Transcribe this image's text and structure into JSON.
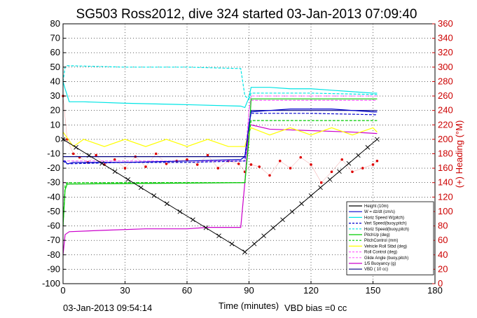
{
  "chart_data": {
    "type": "line",
    "title": "SG503 Ross2012, dive 324 started 03-Jan-2013 07:09:40",
    "xlabel": "Time (minutes)",
    "ylabel_right": "(+) Heading (°M)",
    "footer_left": "03-Jan-2013 09:54:14",
    "footer_right": "VBD bias =0 cc",
    "xlim": [
      0,
      180
    ],
    "ylim": [
      -100,
      80
    ],
    "y2lim": [
      0,
      360
    ],
    "x_ticks": [
      0,
      30,
      60,
      90,
      120,
      150,
      180
    ],
    "y_ticks": [
      -100,
      -90,
      -80,
      -70,
      -60,
      -50,
      -40,
      -30,
      -20,
      -10,
      0,
      10,
      20,
      30,
      40,
      50,
      60,
      70,
      80
    ],
    "y2_ticks": [
      0,
      20,
      40,
      60,
      80,
      100,
      120,
      140,
      160,
      180,
      200,
      220,
      240,
      260,
      280,
      300,
      320,
      340,
      360
    ],
    "grid": true,
    "legend_position": "bottom-right",
    "series": [
      {
        "name": "Height (10m)",
        "color": "#000000",
        "style": "solid",
        "x": [
          0,
          88,
          152
        ],
        "y": [
          0,
          -78,
          0
        ]
      },
      {
        "name": "W = dz/dt (cm/s)",
        "color": "#0000cc",
        "style": "solid",
        "x": [
          0,
          1,
          2,
          5,
          30,
          60,
          86,
          88,
          90,
          91,
          100,
          110,
          120,
          130,
          140,
          150,
          152
        ],
        "y": [
          -15,
          -15,
          -17,
          -16,
          -16,
          -15,
          -14,
          -12,
          10,
          19,
          20,
          21,
          21,
          21,
          20,
          19,
          19
        ]
      },
      {
        "name": "Horiz Speed W(pitch)",
        "color": "#00e5e5",
        "style": "solid",
        "x": [
          0,
          1,
          3,
          10,
          30,
          60,
          86,
          88,
          90,
          91,
          100,
          110,
          120,
          130,
          140,
          150,
          152
        ],
        "y": [
          40,
          35,
          26,
          26,
          25,
          24,
          23,
          22,
          29,
          36,
          36,
          35,
          35,
          34,
          33,
          32,
          32
        ]
      },
      {
        "name": "Vert Speed(buoy,pitch)",
        "color": "#0000cc",
        "style": "dashed",
        "x": [
          0,
          1,
          2,
          30,
          60,
          88,
          90,
          91,
          120,
          152
        ],
        "y": [
          -15,
          -16,
          -17,
          -16,
          -16,
          -15,
          10,
          18,
          18,
          17
        ]
      },
      {
        "name": "Horiz Speed(buoy,pitch)",
        "color": "#00e5e5",
        "style": "dashed",
        "x": [
          0,
          1,
          2,
          30,
          60,
          86,
          88,
          90,
          91,
          120,
          152
        ],
        "y": [
          40,
          50,
          51,
          50,
          50,
          49,
          30,
          28,
          32,
          32,
          31
        ]
      },
      {
        "name": "PitchUp (deg)",
        "color": "#00cc00",
        "style": "solid",
        "x": [
          0,
          1,
          2,
          88,
          90,
          91,
          120,
          152
        ],
        "y": [
          -60,
          -35,
          -31,
          -30,
          0,
          28,
          28,
          28
        ]
      },
      {
        "name": "PitchControl (mm)",
        "color": "#00cc00",
        "style": "dashed",
        "x": [
          0,
          1,
          2,
          88,
          90,
          91,
          120,
          152
        ],
        "y": [
          -60,
          -32,
          -30,
          -30,
          2,
          13,
          13,
          13
        ]
      },
      {
        "name": "Vehicle Roll Stbd (deg)",
        "color": "#ffff00",
        "style": "solid",
        "x": [
          0,
          5,
          10,
          20,
          30,
          40,
          50,
          60,
          70,
          80,
          88,
          90,
          91,
          100,
          110,
          120,
          130,
          140,
          150,
          152
        ],
        "y": [
          5,
          -5,
          0,
          -5,
          0,
          -5,
          0,
          -5,
          0,
          -5,
          -5,
          5,
          8,
          3,
          8,
          3,
          8,
          3,
          8,
          5
        ]
      },
      {
        "name": "Roll Control (deg)",
        "color": "#ff66ff",
        "style": "dashed",
        "x": [
          0,
          88,
          90,
          91,
          120,
          152
        ],
        "y": [
          -15,
          -15,
          20,
          30,
          30,
          30
        ]
      },
      {
        "name": "Glide Angle (buoy,pitch)",
        "color": "#ff66ff",
        "style": "dashed",
        "x": [
          0,
          1,
          2,
          88,
          90,
          91,
          120,
          152
        ],
        "y": [
          -30,
          -30,
          -31,
          -30,
          20,
          27,
          27,
          27
        ]
      },
      {
        "name": "1/5 Buoyancy (g)",
        "color": "#cc00cc",
        "style": "solid",
        "x": [
          0,
          1,
          3,
          20,
          40,
          60,
          70,
          86,
          88,
          90,
          91,
          100,
          120,
          140,
          152
        ],
        "y": [
          -80,
          -66,
          -64,
          -63,
          -62,
          -62,
          -61,
          -61,
          -30,
          10,
          10,
          7,
          6,
          5,
          4
        ]
      },
      {
        "name": "VBD ( 10 cc)",
        "color": "#000080",
        "style": "solid",
        "x": [
          0,
          86,
          88,
          90,
          91,
          152
        ],
        "y": [
          -12,
          -12,
          -12,
          10,
          20,
          20
        ]
      },
      {
        "name": "Heading",
        "axis": "right",
        "color": "#dd0000",
        "style": "markers",
        "x": [
          0,
          2,
          5,
          8,
          12,
          16,
          20,
          25,
          30,
          35,
          40,
          45,
          50,
          55,
          60,
          65,
          70,
          75,
          80,
          85,
          88,
          91,
          95,
          100,
          105,
          110,
          115,
          120,
          125,
          130,
          135,
          140,
          145,
          150,
          152
        ],
        "y": [
          260,
          200,
          180,
          175,
          168,
          178,
          165,
          172,
          160,
          176,
          162,
          180,
          166,
          170,
          172,
          165,
          178,
          160,
          170,
          166,
          155,
          165,
          162,
          150,
          170,
          160,
          175,
          165,
          140,
          155,
          172,
          155,
          160,
          165,
          170
        ]
      }
    ]
  }
}
